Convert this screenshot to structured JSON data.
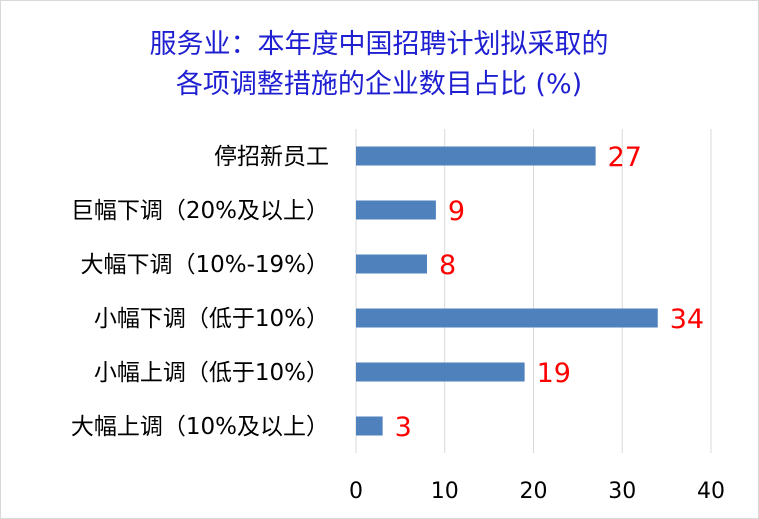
{
  "chart_data": {
    "type": "bar",
    "orientation": "horizontal",
    "title_lines": [
      "服务业：本年度中国招聘计划拟采取的",
      "各项调整措施的企业数目占比 (%)"
    ],
    "categories": [
      "停招新员工",
      "巨幅下调（20%及以上）",
      "大幅下调（10%-19%）",
      "小幅下调（低于10%）",
      "小幅上调（低于10%）",
      "大幅上调（10%及以上）"
    ],
    "values": [
      27,
      9,
      8,
      34,
      19,
      3
    ],
    "value_labels": [
      "27",
      "9",
      "8",
      "34",
      "19",
      "3"
    ],
    "xlim": [
      0,
      40
    ],
    "xticks": [
      0,
      10,
      20,
      30,
      40
    ],
    "xtick_labels": [
      "0",
      "10",
      "20",
      "30",
      "40"
    ],
    "grid": true,
    "legend": false,
    "bar_color": "#4f81bd",
    "label_color": "#ff0000",
    "title_color": "#1f1fd2"
  }
}
